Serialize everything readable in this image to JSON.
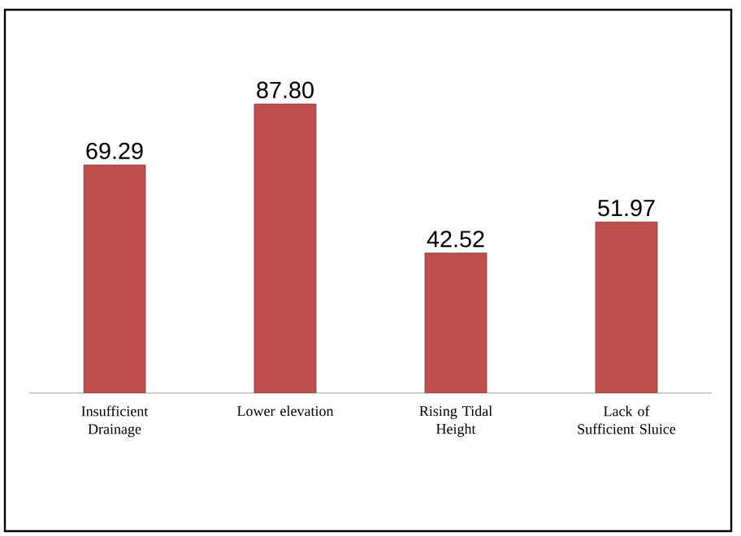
{
  "chart_data": {
    "type": "bar",
    "categories": [
      "Insufficient Drainage",
      "Lower elevation",
      "Rising Tidal Height",
      "Lack of Sufficient Sluice"
    ],
    "values": [
      69.29,
      87.8,
      42.52,
      51.97
    ],
    "value_labels": [
      "69.29",
      "87.80",
      "42.52",
      "51.97"
    ],
    "color": "#c0504d"
  }
}
